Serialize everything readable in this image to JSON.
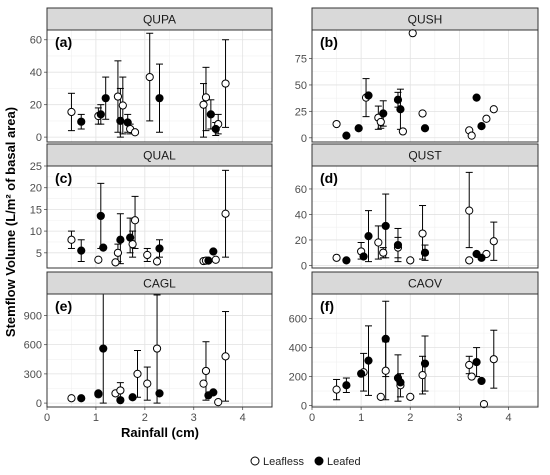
{
  "chart_data": {
    "type": "scatter",
    "error_bars": true,
    "grid": true,
    "legend_position": "bottom",
    "xlabel": "Rainfall (cm)",
    "ylabel": "Stemflow Volume (L/m² of basal area)",
    "xlim": [
      0,
      4.6
    ],
    "x_ticks": [
      0,
      1,
      2,
      3,
      4
    ],
    "legend": [
      {
        "name": "Leafless",
        "filled": false
      },
      {
        "name": "Leafed",
        "filled": true
      }
    ],
    "panels": [
      {
        "title": "QUPA",
        "tag": "(a)",
        "ylim": [
          -3,
          66
        ],
        "y_ticks": [
          0,
          20,
          40,
          60
        ],
        "series": [
          {
            "name": "Leafless",
            "points": [
              {
                "x": 0.5,
                "y": 15.5,
                "lo": 4,
                "hi": 27
              },
              {
                "x": 1.05,
                "y": 13,
                "lo": 8,
                "hi": 18
              },
              {
                "x": 1.45,
                "y": 25,
                "lo": 3,
                "hi": 47
              },
              {
                "x": 1.55,
                "y": 19.5,
                "lo": 2,
                "hi": 37
              },
              {
                "x": 1.7,
                "y": 5,
                "lo": 2,
                "hi": 8
              },
              {
                "x": 1.8,
                "y": 3,
                "lo": 2,
                "hi": 4
              },
              {
                "x": 2.1,
                "y": 37,
                "lo": 10,
                "hi": 64
              },
              {
                "x": 3.2,
                "y": 20,
                "lo": 0,
                "hi": 33
              },
              {
                "x": 3.25,
                "y": 24.5,
                "lo": 4,
                "hi": 43
              },
              {
                "x": 3.5,
                "y": 8,
                "lo": 2,
                "hi": 14
              },
              {
                "x": 3.65,
                "y": 33,
                "lo": 6,
                "hi": 60
              }
            ]
          },
          {
            "name": "Leafed",
            "points": [
              {
                "x": 0.7,
                "y": 9.5,
                "lo": 5,
                "hi": 14
              },
              {
                "x": 1.1,
                "y": 14,
                "lo": 8,
                "hi": 20
              },
              {
                "x": 1.2,
                "y": 24,
                "lo": 11,
                "hi": 37
              },
              {
                "x": 1.5,
                "y": 10,
                "lo": 0,
                "hi": 30
              },
              {
                "x": 1.65,
                "y": 9,
                "lo": 3,
                "hi": 14
              },
              {
                "x": 2.3,
                "y": 24,
                "lo": 3,
                "hi": 45
              },
              {
                "x": 3.35,
                "y": 14,
                "lo": 5,
                "hi": 23
              },
              {
                "x": 3.45,
                "y": 5,
                "lo": 1,
                "hi": 9
              }
            ]
          }
        ]
      },
      {
        "title": "QUSH",
        "tag": "(b)",
        "ylim": [
          -4,
          102
        ],
        "y_ticks": [
          0,
          25,
          50,
          75
        ],
        "series": [
          {
            "name": "Leafless",
            "points": [
              {
                "x": 0.5,
                "y": 13
              },
              {
                "x": 1.1,
                "y": 38,
                "lo": 20,
                "hi": 56
              },
              {
                "x": 1.35,
                "y": 19,
                "lo": 8,
                "hi": 30
              },
              {
                "x": 1.4,
                "y": 15,
                "lo": 9,
                "hi": 21
              },
              {
                "x": 1.85,
                "y": 6
              },
              {
                "x": 2.05,
                "y": 99
              },
              {
                "x": 2.25,
                "y": 23
              },
              {
                "x": 3.2,
                "y": 7
              },
              {
                "x": 3.25,
                "y": 2
              },
              {
                "x": 3.55,
                "y": 18
              },
              {
                "x": 3.7,
                "y": 27
              }
            ]
          },
          {
            "name": "Leafed",
            "points": [
              {
                "x": 0.7,
                "y": 2
              },
              {
                "x": 0.95,
                "y": 9
              },
              {
                "x": 1.15,
                "y": 40
              },
              {
                "x": 1.45,
                "y": 23,
                "lo": 11,
                "hi": 35
              },
              {
                "x": 1.75,
                "y": 36,
                "lo": 29,
                "hi": 43
              },
              {
                "x": 1.8,
                "y": 27,
                "lo": 8,
                "hi": 46
              },
              {
                "x": 2.3,
                "y": 9
              },
              {
                "x": 3.35,
                "y": 38
              },
              {
                "x": 3.45,
                "y": 11
              }
            ]
          }
        ]
      },
      {
        "title": "QUAL",
        "tag": "(c)",
        "ylim": [
          1.5,
          25
        ],
        "y_ticks": [
          5,
          10,
          15,
          20,
          25
        ],
        "series": [
          {
            "name": "Leafless",
            "points": [
              {
                "x": 0.5,
                "y": 8,
                "lo": 6,
                "hi": 10
              },
              {
                "x": 1.05,
                "y": 3.4
              },
              {
                "x": 1.4,
                "y": 2.8
              },
              {
                "x": 1.45,
                "y": 5,
                "lo": 3,
                "hi": 7
              },
              {
                "x": 1.75,
                "y": 7,
                "lo": 4,
                "hi": 10
              },
              {
                "x": 1.8,
                "y": 12.5,
                "lo": 6,
                "hi": 18
              },
              {
                "x": 2.05,
                "y": 4.5,
                "lo": 3,
                "hi": 6
              },
              {
                "x": 2.25,
                "y": 3
              },
              {
                "x": 3.2,
                "y": 3.1
              },
              {
                "x": 3.25,
                "y": 3.2
              },
              {
                "x": 3.45,
                "y": 3.4
              },
              {
                "x": 3.65,
                "y": 14,
                "lo": 4,
                "hi": 24
              }
            ]
          },
          {
            "name": "Leafed",
            "points": [
              {
                "x": 0.7,
                "y": 5.5,
                "lo": 3,
                "hi": 8
              },
              {
                "x": 1.1,
                "y": 13.5,
                "lo": 6,
                "hi": 21
              },
              {
                "x": 1.15,
                "y": 6.2
              },
              {
                "x": 1.5,
                "y": 8,
                "lo": 2.5,
                "hi": 14
              },
              {
                "x": 1.7,
                "y": 8.5,
                "lo": 5,
                "hi": 13
              },
              {
                "x": 2.3,
                "y": 6,
                "lo": 4,
                "hi": 8
              },
              {
                "x": 3.3,
                "y": 3.2
              },
              {
                "x": 3.4,
                "y": 5.3
              }
            ]
          }
        ]
      },
      {
        "title": "QUST",
        "tag": "(d)",
        "ylim": [
          -2,
          78
        ],
        "y_ticks": [
          0,
          20,
          40,
          60
        ],
        "series": [
          {
            "name": "Leafless",
            "points": [
              {
                "x": 0.5,
                "y": 6
              },
              {
                "x": 1.0,
                "y": 11,
                "lo": 5,
                "hi": 18
              },
              {
                "x": 1.35,
                "y": 18,
                "lo": 5,
                "hi": 31
              },
              {
                "x": 1.45,
                "y": 10,
                "lo": 6,
                "hi": 14
              },
              {
                "x": 1.75,
                "y": 14,
                "lo": 6,
                "hi": 22
              },
              {
                "x": 2.0,
                "y": 4
              },
              {
                "x": 2.25,
                "y": 25,
                "lo": 5,
                "hi": 47
              },
              {
                "x": 3.2,
                "y": 43,
                "lo": 14,
                "hi": 73
              },
              {
                "x": 3.2,
                "y": 4
              },
              {
                "x": 3.55,
                "y": 9
              },
              {
                "x": 3.7,
                "y": 19,
                "lo": 4,
                "hi": 34
              }
            ]
          },
          {
            "name": "Leafed",
            "points": [
              {
                "x": 0.7,
                "y": 4
              },
              {
                "x": 1.05,
                "y": 7
              },
              {
                "x": 1.15,
                "y": 23,
                "lo": 3,
                "hi": 43
              },
              {
                "x": 1.5,
                "y": 31,
                "lo": 6,
                "hi": 56
              },
              {
                "x": 1.75,
                "y": 16,
                "lo": 3,
                "hi": 29
              },
              {
                "x": 2.3,
                "y": 10,
                "lo": 4,
                "hi": 16
              },
              {
                "x": 3.35,
                "y": 9
              },
              {
                "x": 3.45,
                "y": 6
              }
            ]
          }
        ]
      },
      {
        "title": "CAGL",
        "tag": "(e)",
        "ylim": [
          -40,
          1120
        ],
        "y_ticks": [
          0,
          300,
          600,
          900
        ],
        "series": [
          {
            "name": "Leafless",
            "points": [
              {
                "x": 0.5,
                "y": 50
              },
              {
                "x": 1.05,
                "y": 90
              },
              {
                "x": 1.4,
                "y": 100
              },
              {
                "x": 1.5,
                "y": 130,
                "lo": 50,
                "hi": 210
              },
              {
                "x": 1.85,
                "y": 300,
                "lo": 60,
                "hi": 540
              },
              {
                "x": 2.05,
                "y": 200,
                "lo": 30,
                "hi": 370
              },
              {
                "x": 2.25,
                "y": 560,
                "lo": 0,
                "hi": 1110
              },
              {
                "x": 3.2,
                "y": 200
              },
              {
                "x": 3.25,
                "y": 330,
                "lo": 30,
                "hi": 630
              },
              {
                "x": 3.5,
                "y": 10
              },
              {
                "x": 3.65,
                "y": 480,
                "lo": 20,
                "hi": 940
              }
            ]
          },
          {
            "name": "Leafed",
            "points": [
              {
                "x": 0.7,
                "y": 50
              },
              {
                "x": 1.05,
                "y": 100
              },
              {
                "x": 1.15,
                "y": 560,
                "lo": 0,
                "hi": 1120
              },
              {
                "x": 1.5,
                "y": 30
              },
              {
                "x": 1.75,
                "y": 60
              },
              {
                "x": 2.3,
                "y": 100
              },
              {
                "x": 3.3,
                "y": 80
              },
              {
                "x": 3.4,
                "y": 110
              }
            ]
          }
        ]
      },
      {
        "title": "CAOV",
        "tag": "(f)",
        "ylim": [
          -10,
          770
        ],
        "y_ticks": [
          0,
          200,
          400,
          600
        ],
        "series": [
          {
            "name": "Leafless",
            "points": [
              {
                "x": 0.5,
                "y": 110,
                "lo": 40,
                "hi": 180
              },
              {
                "x": 1.05,
                "y": 230,
                "lo": 100,
                "hi": 360
              },
              {
                "x": 1.4,
                "y": 60
              },
              {
                "x": 1.5,
                "y": 240,
                "lo": 40,
                "hi": 440
              },
              {
                "x": 1.8,
                "y": 140,
                "lo": 60,
                "hi": 220
              },
              {
                "x": 2.0,
                "y": 60
              },
              {
                "x": 2.25,
                "y": 210,
                "lo": 80,
                "hi": 340
              },
              {
                "x": 3.2,
                "y": 280,
                "lo": 220,
                "hi": 340
              },
              {
                "x": 3.25,
                "y": 200
              },
              {
                "x": 3.5,
                "y": 10
              },
              {
                "x": 3.7,
                "y": 320,
                "lo": 120,
                "hi": 520
              }
            ]
          },
          {
            "name": "Leafed",
            "points": [
              {
                "x": 0.7,
                "y": 140,
                "lo": 90,
                "hi": 190
              },
              {
                "x": 1.0,
                "y": 220
              },
              {
                "x": 1.15,
                "y": 310,
                "lo": 70,
                "hi": 550
              },
              {
                "x": 1.5,
                "y": 460,
                "lo": 200,
                "hi": 720
              },
              {
                "x": 1.75,
                "y": 190,
                "lo": 30,
                "hi": 350
              },
              {
                "x": 1.8,
                "y": 160
              },
              {
                "x": 2.3,
                "y": 290,
                "lo": 100,
                "hi": 480
              },
              {
                "x": 3.35,
                "y": 300,
                "lo": 200,
                "hi": 400
              },
              {
                "x": 3.45,
                "y": 170
              }
            ]
          }
        ]
      }
    ]
  }
}
